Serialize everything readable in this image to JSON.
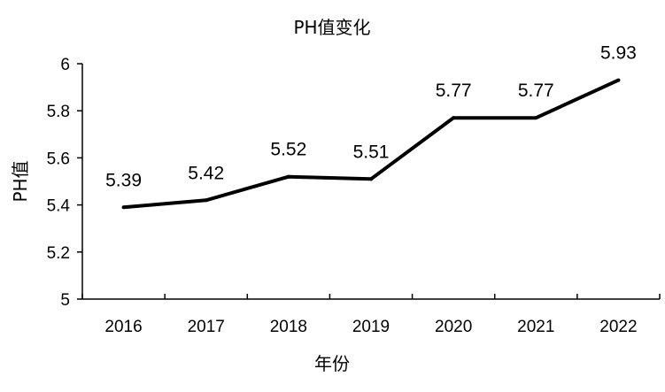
{
  "chart_data": {
    "type": "line",
    "title": "PH值变化",
    "xlabel": "年份",
    "ylabel": "PH值",
    "categories": [
      "2016",
      "2017",
      "2018",
      "2019",
      "2020",
      "2021",
      "2022"
    ],
    "series": [
      {
        "values": [
          5.39,
          5.42,
          5.52,
          5.51,
          5.77,
          5.77,
          5.93
        ]
      }
    ],
    "data_labels": [
      "5.39",
      "5.42",
      "5.52",
      "5.51",
      "5.77",
      "5.77",
      "5.93"
    ],
    "ylim": [
      5,
      6
    ],
    "yticks": [
      "5",
      "5.2",
      "5.4",
      "5.6",
      "5.8",
      "6"
    ],
    "grid": false,
    "line_color": "#000000"
  }
}
